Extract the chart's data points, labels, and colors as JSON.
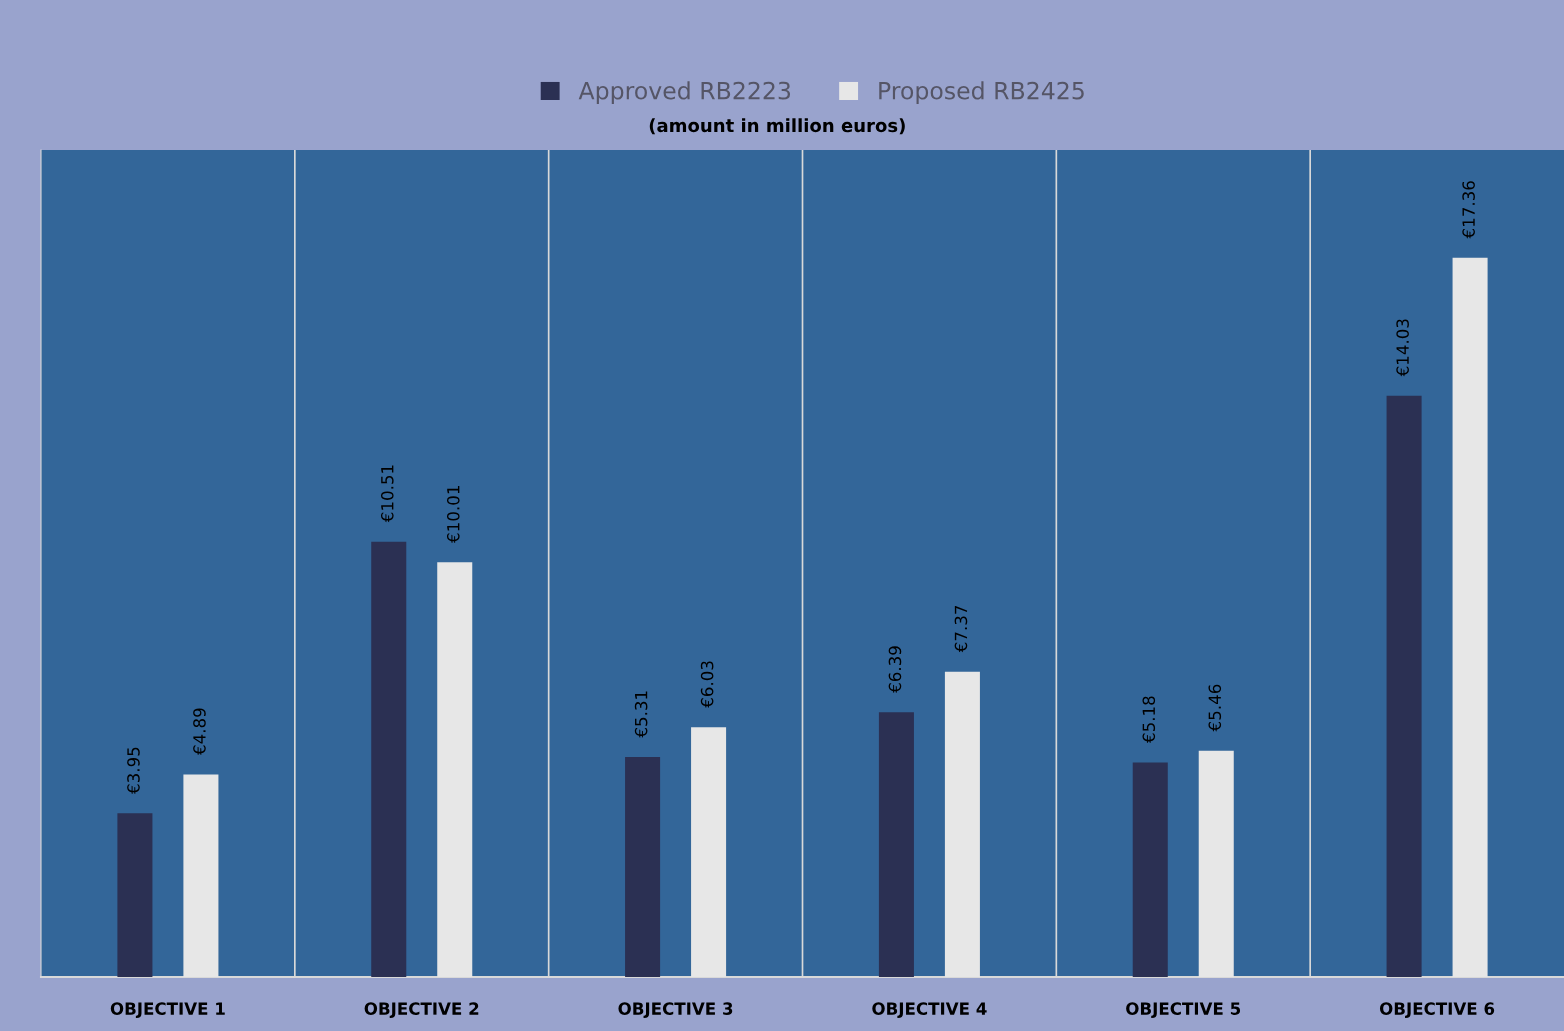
{
  "chart_data": {
    "type": "bar",
    "subtitle": "(amount in million euros)",
    "categories": [
      "OBJECTIVE 1",
      "OBJECTIVE 2",
      "OBJECTIVE 3",
      "OBJECTIVE 4",
      "OBJECTIVE 5",
      "OBJECTIVE 6"
    ],
    "series": [
      {
        "name": "Approved RB2223",
        "color": "#2b3053",
        "values": [
          3.95,
          10.51,
          5.31,
          6.39,
          5.18,
          14.03
        ],
        "value_labels": [
          "€3.95",
          "€10.51",
          "€5.31",
          "€6.39",
          "€5.18",
          "€14.03"
        ]
      },
      {
        "name": "Proposed RB2425",
        "color": "#e7e7e7",
        "values": [
          4.89,
          10.01,
          6.03,
          7.37,
          5.46,
          17.36
        ],
        "value_labels": [
          "€4.89",
          "€10.01",
          "€6.03",
          "€7.37",
          "€5.46",
          "€17.36"
        ]
      }
    ],
    "legend": "top",
    "grid": "x"
  }
}
